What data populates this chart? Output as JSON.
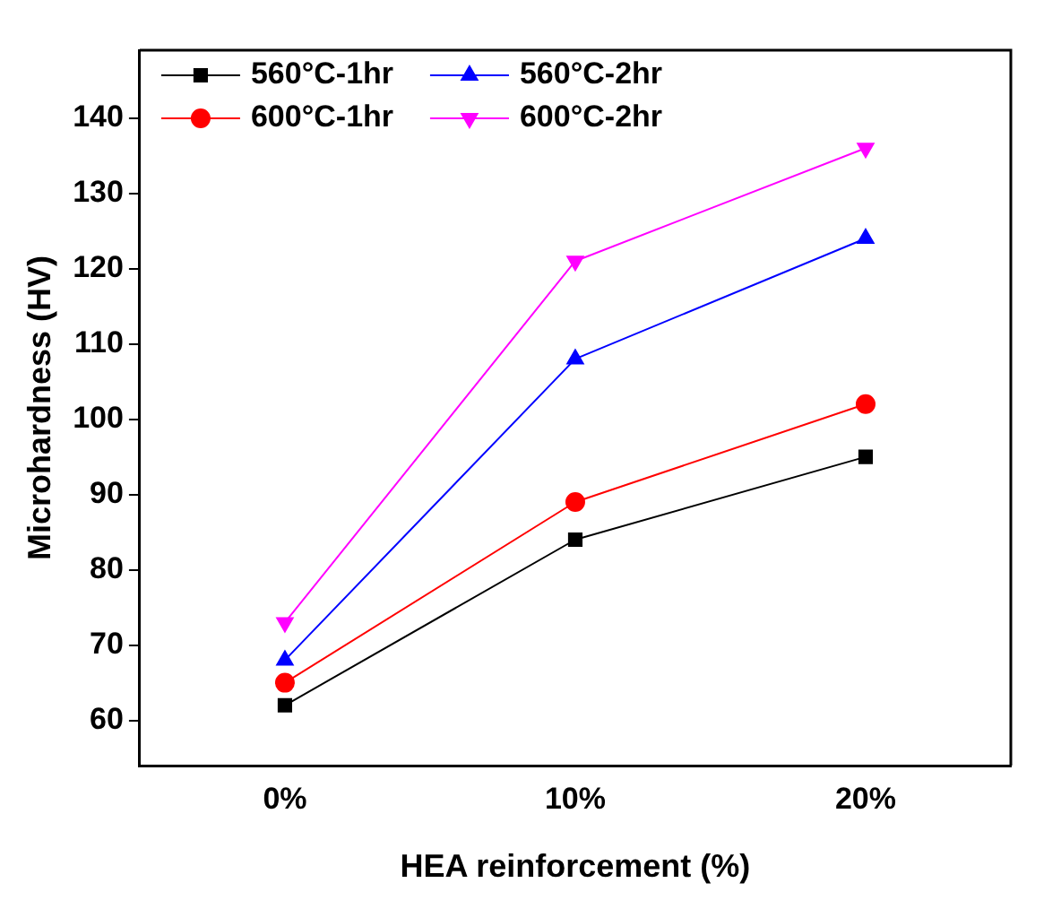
{
  "chart_data": {
    "type": "line",
    "xlabel": "HEA reinforcement (%)",
    "ylabel": "Microhardness (HV)",
    "categories": [
      "0%",
      "10%",
      "20%"
    ],
    "series": [
      {
        "name": "560°C-1hr",
        "color": "#000000",
        "marker": "square",
        "values": [
          62,
          84,
          95
        ]
      },
      {
        "name": "560°C-2hr",
        "color": "#0000ff",
        "marker": "triangle",
        "values": [
          68,
          108,
          124
        ]
      },
      {
        "name": "600°C-1hr",
        "color": "#ff0000",
        "marker": "circle",
        "values": [
          65,
          89,
          102
        ]
      },
      {
        "name": "600°C-2hr",
        "color": "#ff00ff",
        "marker": "triangle-down",
        "values": [
          73,
          121,
          136
        ]
      }
    ],
    "ylim": [
      54,
      149
    ],
    "yticks": [
      60,
      70,
      80,
      90,
      100,
      110,
      120,
      130,
      140
    ],
    "grid": false,
    "legend": "top left",
    "line_style": "solid"
  }
}
